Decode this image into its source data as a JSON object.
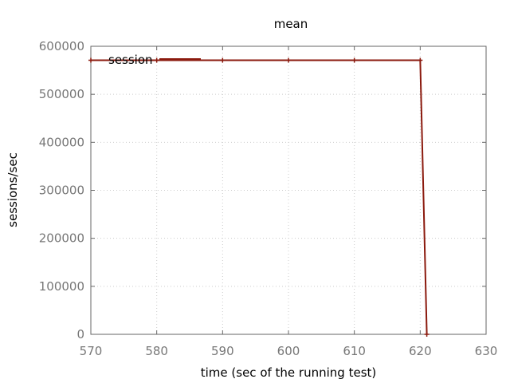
{
  "chart_data": {
    "type": "line",
    "title": "mean",
    "xlabel": "time (sec of the running test)",
    "ylabel": "sessions/sec",
    "xlim": [
      570,
      630
    ],
    "ylim": [
      0,
      600000
    ],
    "xticks": [
      570,
      580,
      590,
      600,
      610,
      620,
      630
    ],
    "yticks": [
      0,
      100000,
      200000,
      300000,
      400000,
      500000,
      600000
    ],
    "xtick_labels": [
      "570",
      "580",
      "590",
      "600",
      "610",
      "620",
      "630"
    ],
    "ytick_labels": [
      "0",
      "100000",
      "200000",
      "300000",
      "400000",
      "500000",
      "600000"
    ],
    "grid": true,
    "legend_position": "top-left",
    "series": [
      {
        "name": "session",
        "color": "#8b1a0e",
        "x": [
          570,
          580,
          590,
          600,
          610,
          620,
          621
        ],
        "y": [
          571000,
          571000,
          571000,
          571000,
          571000,
          571000,
          0
        ]
      }
    ]
  }
}
